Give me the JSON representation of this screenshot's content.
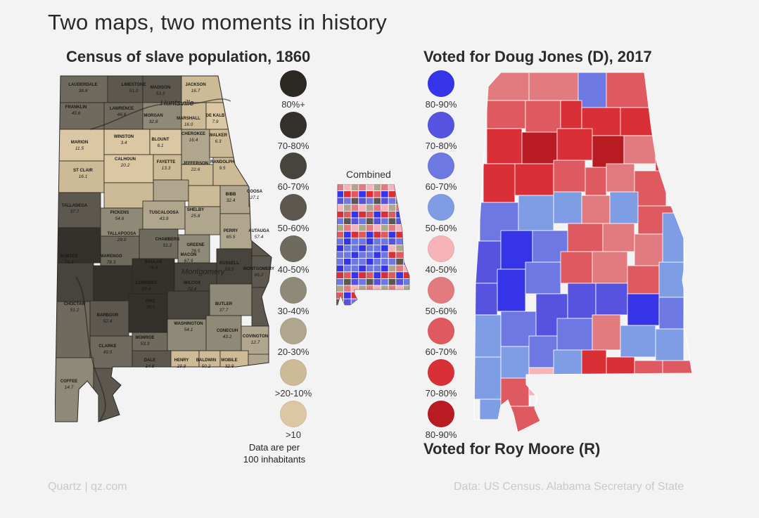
{
  "title": "Two maps, two moments in history",
  "left_map": {
    "title": "Census of slave population, 1860",
    "counties": [
      {
        "name": "LAUDERDALE",
        "value": "38.8"
      },
      {
        "name": "LIMESTONE",
        "value": "51.0"
      },
      {
        "name": "MADISON",
        "value": "53.3"
      },
      {
        "name": "JACKSON",
        "value": "16.7"
      },
      {
        "name": "FRANKLIN",
        "value": "45.6"
      },
      {
        "name": "LAWRENCE",
        "value": "46.6"
      },
      {
        "name": "MORGAN",
        "value": "32.8"
      },
      {
        "name": "MARSHALL",
        "value": "16.0"
      },
      {
        "name": "DE KALB",
        "value": "7.9"
      },
      {
        "name": "MARION",
        "value": "11.5"
      },
      {
        "name": "WINSTON",
        "value": "3.4"
      },
      {
        "name": "BLOUNT",
        "value": "6.1"
      },
      {
        "name": "CHEROKEE",
        "value": "16.4"
      },
      {
        "name": "WALKER",
        "value": "6.3"
      },
      {
        "name": "ST CLAIR",
        "value": "16.1"
      },
      {
        "name": "CALHOUN",
        "value": "20.2"
      },
      {
        "name": "FAYETTE",
        "value": "13.3"
      },
      {
        "name": "JEFFERSON",
        "value": "22.6"
      },
      {
        "name": "RANDOLPH",
        "value": "9.5"
      },
      {
        "name": "TALLADEGA",
        "value": "37.7"
      },
      {
        "name": "PICKENS",
        "value": "54.6"
      },
      {
        "name": "TUSCALOOSA",
        "value": "43.9"
      },
      {
        "name": "SHELBY",
        "value": "25.8"
      },
      {
        "name": "BIBB",
        "value": "32.4"
      },
      {
        "name": "COOSA",
        "value": "27.1"
      },
      {
        "name": "TALLAPOOSA",
        "value": "29.0"
      },
      {
        "name": "CHAMBERS",
        "value": "51.2"
      },
      {
        "name": "GREENE",
        "value": "76.5"
      },
      {
        "name": "PERRY",
        "value": "65.5"
      },
      {
        "name": "AUTAUGA",
        "value": "57.4"
      },
      {
        "name": "SUMTER",
        "value": "74.3"
      },
      {
        "name": "MARENGO",
        "value": "78.3"
      },
      {
        "name": "DALLAS",
        "value": "76.8"
      },
      {
        "name": "MACON",
        "value": "67.9"
      },
      {
        "name": "RUSSELL",
        "value": "59.5"
      },
      {
        "name": "MONTGOMERY",
        "value": "66.2"
      },
      {
        "name": "LOWNDES",
        "value": "69.6"
      },
      {
        "name": "WILCOX",
        "value": "72.4"
      },
      {
        "name": "CHOCTAW",
        "value": "51.2"
      },
      {
        "name": "BARBOUR",
        "value": "52.4"
      },
      {
        "name": "PIKE",
        "value": "36.0"
      },
      {
        "name": "BUTLER",
        "value": "37.7"
      },
      {
        "name": "CLARKE",
        "value": "49.5"
      },
      {
        "name": "MONROE",
        "value": "53.3"
      },
      {
        "name": "WASHINGTON",
        "value": "54.1"
      },
      {
        "name": "CONECUH",
        "value": "43.2"
      },
      {
        "name": "COVINGTON",
        "value": "12.7"
      },
      {
        "name": "COFFEE",
        "value": "14.7"
      },
      {
        "name": "DALE",
        "value": "14.8"
      },
      {
        "name": "HENRY",
        "value": "29.8"
      },
      {
        "name": "BALDWIN",
        "value": "50.2"
      },
      {
        "name": "MOBILE",
        "value": "32.9"
      }
    ],
    "city_labels": [
      "Huntsville",
      "Montgomery"
    ],
    "legend": [
      {
        "label": "80%+",
        "color": "#2b2824"
      },
      {
        "label": "70-80%",
        "color": "#34312c"
      },
      {
        "label": "60-70%",
        "color": "#46443d"
      },
      {
        "label": "50-60%",
        "color": "#5c5850"
      },
      {
        "label": "40-50%",
        "color": "#6f6a5e"
      },
      {
        "label": "30-40%",
        "color": "#8f8a78"
      },
      {
        "label": "20-30%",
        "color": "#b0a68e"
      },
      {
        "label": ">20-10%",
        "color": "#cdbb98"
      },
      {
        "label": ">10",
        "color": "#dcc7a4"
      }
    ],
    "note_line1": "Data are per",
    "note_line2": "100 inhabitants"
  },
  "combined": {
    "label": "Combined"
  },
  "right_map": {
    "title": "Voted for Doug Jones (D), 2017",
    "bottom_title": "Voted for Roy Moore (R)",
    "legend": [
      {
        "label": "80-90%",
        "color": "#3634e8"
      },
      {
        "label": "70-80%",
        "color": "#5553e0"
      },
      {
        "label": "60-70%",
        "color": "#6e78e2"
      },
      {
        "label": "50-60%",
        "color": "#7f9de4"
      },
      {
        "label": "40-50%",
        "color": "#f6b3b8"
      },
      {
        "label": "50-60%",
        "color": "#e27b80"
      },
      {
        "label": "60-70%",
        "color": "#de5a60"
      },
      {
        "label": "70-80%",
        "color": "#d93038"
      },
      {
        "label": "80-90%",
        "color": "#b81b22"
      }
    ]
  },
  "footer": {
    "left": "Quartz | qz.com",
    "right": "Data: US Census. Alabama Secretary of State"
  }
}
